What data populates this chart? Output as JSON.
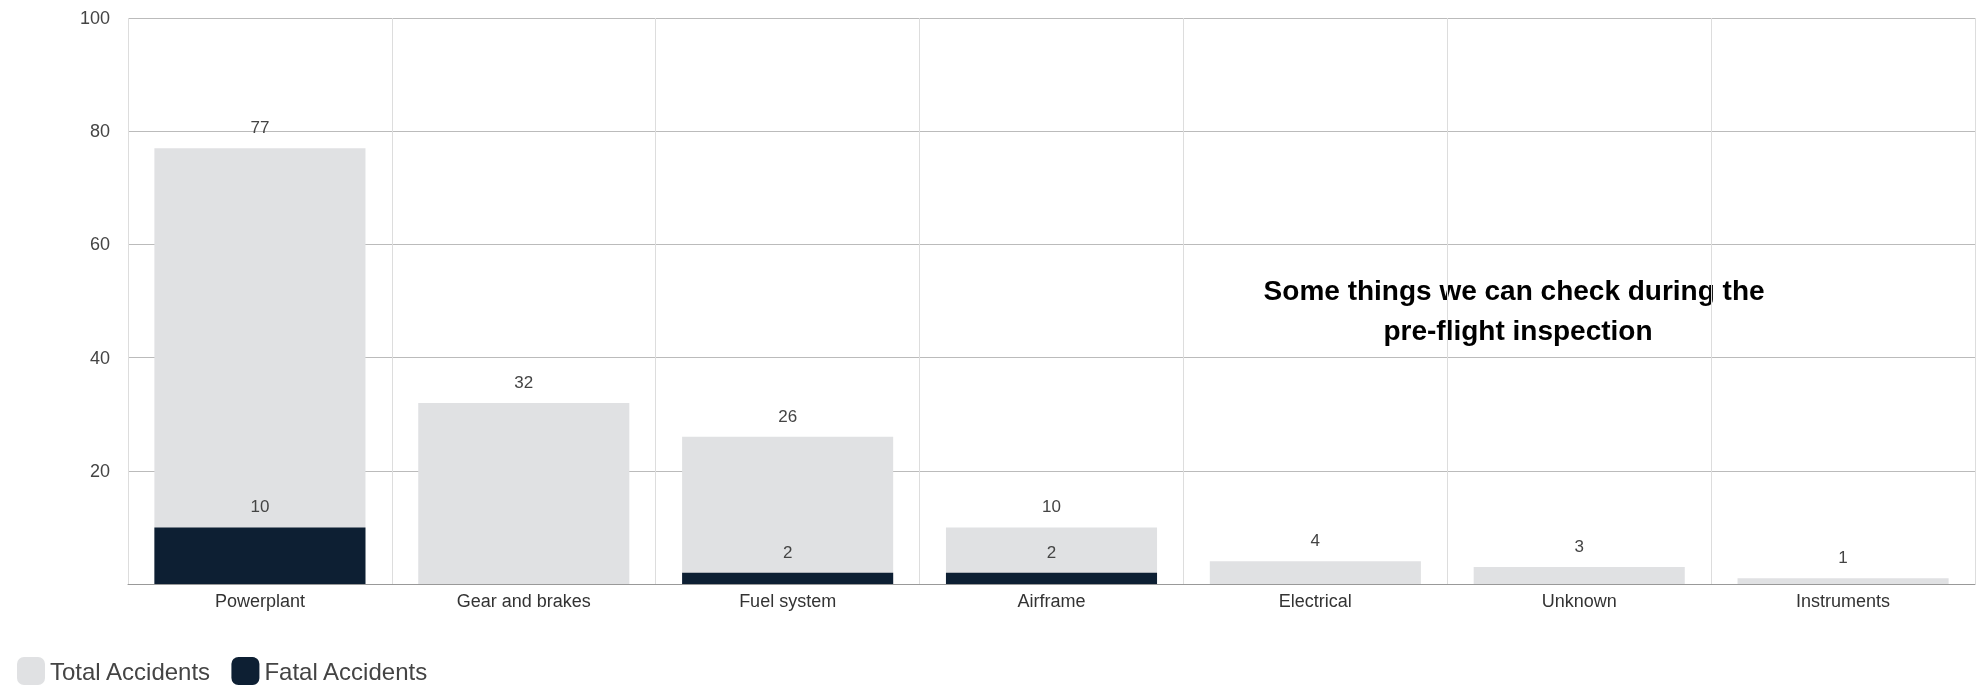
{
  "chart_data": {
    "type": "bar",
    "categories": [
      "Powerplant",
      "Gear and brakes",
      "Fuel system",
      "Airframe",
      "Electrical",
      "Unknown",
      "Instruments"
    ],
    "series": [
      {
        "name": "Total Accidents",
        "color": "#e0e1e3",
        "values": [
          77,
          32,
          26,
          10,
          4,
          3,
          1
        ]
      },
      {
        "name": "Fatal Accidents",
        "color": "#0d1f33",
        "values": [
          10,
          null,
          2,
          2,
          null,
          null,
          null
        ]
      }
    ],
    "ylim": [
      0,
      100
    ],
    "yticks": [
      {
        "value": 0,
        "label": null
      },
      20,
      40,
      60,
      80,
      100
    ],
    "grid": true,
    "legend": "bottom left",
    "data_labels": true,
    "annotations": [
      "Some things we can check during the pre-flight inspection"
    ]
  }
}
